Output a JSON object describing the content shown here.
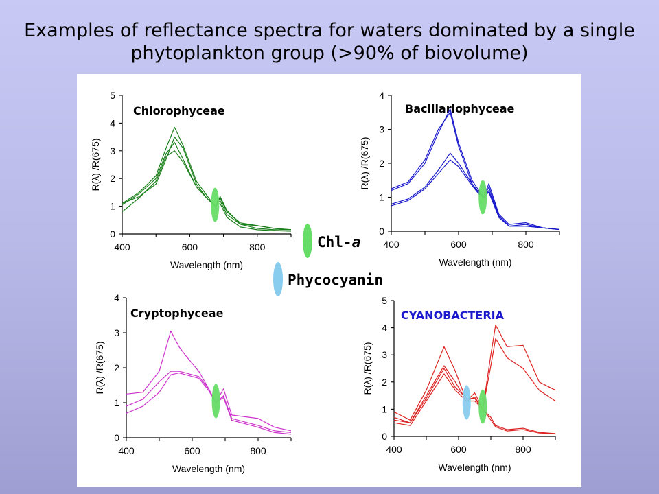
{
  "slide_title": "Examples of reflectance spectra for waters dominated by a single phytoplankton group (>90% of biovolume)",
  "legend": {
    "chl_label": "Chl-",
    "chl_italic": "a",
    "phyco_label": "Phycocyanin",
    "chl_color": "#66dd66",
    "phyco_color": "#88ccee"
  },
  "chart_data": [
    {
      "type": "line",
      "title": "Chlorophyceae",
      "title_color": "#000000",
      "xlabel": "Wavelength (nm)",
      "ylabel": "R(λ) /R(675)",
      "xlim": [
        400,
        900
      ],
      "ylim": [
        0,
        5
      ],
      "xticks": [
        400,
        600,
        800
      ],
      "yticks": [
        0,
        1,
        2,
        3,
        4,
        5
      ],
      "line_color": "#1a7f1a",
      "markers": [
        {
          "kind": "chl-a",
          "x": 675,
          "y": 1.05
        }
      ],
      "series": [
        {
          "x": [
            400,
            450,
            500,
            530,
            555,
            580,
            620,
            650,
            675,
            690,
            710,
            750,
            800,
            850,
            900
          ],
          "y": [
            1.05,
            1.45,
            2.0,
            2.9,
            3.3,
            2.7,
            1.7,
            1.3,
            1.0,
            1.2,
            0.7,
            0.35,
            0.2,
            0.15,
            0.15
          ]
        },
        {
          "x": [
            400,
            450,
            500,
            530,
            555,
            580,
            620,
            650,
            675,
            690,
            710,
            750,
            800,
            850,
            900
          ],
          "y": [
            1.1,
            1.5,
            2.1,
            3.1,
            3.85,
            3.2,
            1.9,
            1.4,
            1.0,
            1.35,
            0.85,
            0.35,
            0.3,
            0.2,
            0.15
          ]
        },
        {
          "x": [
            400,
            450,
            500,
            530,
            555,
            580,
            620,
            650,
            675,
            690,
            710,
            750,
            800,
            850,
            900
          ],
          "y": [
            0.8,
            1.3,
            1.9,
            2.8,
            3.0,
            2.6,
            1.7,
            1.3,
            1.0,
            1.1,
            0.6,
            0.25,
            0.15,
            0.12,
            0.1
          ]
        },
        {
          "x": [
            400,
            450,
            500,
            530,
            555,
            580,
            620,
            650,
            675,
            690,
            710,
            750,
            800,
            850,
            900
          ],
          "y": [
            1.1,
            1.35,
            1.8,
            2.7,
            3.5,
            3.1,
            1.8,
            1.3,
            1.0,
            1.3,
            0.8,
            0.4,
            0.3,
            0.2,
            0.15
          ]
        }
      ]
    },
    {
      "type": "line",
      "title": "Bacillariophyceae",
      "title_color": "#000000",
      "xlabel": "Wavelength (nm)",
      "ylabel": "R(λ) /R(675)",
      "xlim": [
        400,
        900
      ],
      "ylim": [
        0,
        4
      ],
      "xticks": [
        400,
        600,
        800
      ],
      "yticks": [
        0,
        1,
        2,
        3,
        4
      ],
      "line_color": "#1a1acc",
      "markers": [
        {
          "kind": "chl-a",
          "x": 672,
          "y": 1.0
        }
      ],
      "series": [
        {
          "x": [
            400,
            450,
            500,
            540,
            575,
            600,
            640,
            660,
            675,
            690,
            720,
            750,
            800,
            850,
            900
          ],
          "y": [
            1.2,
            1.4,
            2.0,
            2.9,
            3.6,
            2.6,
            1.5,
            1.2,
            1.0,
            1.4,
            0.5,
            0.2,
            0.25,
            0.1,
            0.05
          ]
        },
        {
          "x": [
            400,
            450,
            500,
            540,
            575,
            600,
            640,
            660,
            675,
            690,
            720,
            750,
            800,
            850,
            900
          ],
          "y": [
            1.25,
            1.45,
            2.1,
            3.0,
            3.5,
            2.5,
            1.4,
            1.1,
            1.0,
            1.3,
            0.45,
            0.15,
            0.2,
            0.1,
            0.05
          ]
        },
        {
          "x": [
            400,
            450,
            500,
            540,
            575,
            600,
            640,
            660,
            675,
            690,
            720,
            750,
            800,
            850,
            900
          ],
          "y": [
            0.8,
            0.95,
            1.3,
            1.8,
            2.3,
            2.0,
            1.4,
            1.15,
            1.0,
            1.2,
            0.45,
            0.15,
            0.15,
            0.1,
            0.05
          ]
        },
        {
          "x": [
            400,
            450,
            500,
            540,
            575,
            600,
            640,
            660,
            675,
            690,
            720,
            750,
            800,
            850,
            900
          ],
          "y": [
            0.75,
            0.9,
            1.25,
            1.7,
            2.1,
            1.9,
            1.35,
            1.1,
            1.0,
            1.15,
            0.4,
            0.15,
            0.15,
            0.1,
            0.05
          ]
        }
      ]
    },
    {
      "type": "line",
      "title": "Cryptophyceae",
      "title_color": "#000000",
      "xlabel": "Wavelength (nm)",
      "ylabel": "R(λ) /R(675)",
      "xlim": [
        400,
        900
      ],
      "ylim": [
        0,
        4
      ],
      "xticks": [
        400,
        600,
        800
      ],
      "yticks": [
        0,
        1,
        2,
        3,
        4
      ],
      "line_color": "#cc33cc",
      "markers": [
        {
          "kind": "chl-a",
          "x": 672,
          "y": 1.05
        }
      ],
      "series": [
        {
          "x": [
            400,
            450,
            500,
            535,
            560,
            580,
            620,
            650,
            672,
            695,
            720,
            760,
            800,
            850,
            900
          ],
          "y": [
            1.25,
            1.3,
            1.9,
            3.05,
            2.6,
            2.35,
            1.9,
            1.4,
            1.0,
            1.4,
            0.65,
            0.6,
            0.55,
            0.3,
            0.2
          ]
        },
        {
          "x": [
            400,
            450,
            500,
            535,
            560,
            580,
            620,
            650,
            672,
            695,
            720,
            760,
            800,
            850,
            900
          ],
          "y": [
            0.9,
            1.1,
            1.6,
            1.9,
            1.9,
            1.85,
            1.75,
            1.4,
            1.0,
            1.2,
            0.55,
            0.45,
            0.35,
            0.2,
            0.15
          ]
        },
        {
          "x": [
            400,
            450,
            500,
            535,
            560,
            580,
            620,
            650,
            672,
            695,
            720,
            760,
            800,
            850,
            900
          ],
          "y": [
            0.7,
            0.9,
            1.3,
            1.8,
            1.85,
            1.8,
            1.7,
            1.35,
            1.0,
            1.15,
            0.5,
            0.4,
            0.3,
            0.15,
            0.1
          ]
        }
      ]
    },
    {
      "type": "line",
      "title": "CYANOBACTERIA",
      "title_color": "#1a1acc",
      "xlabel": "Wavelength (nm)",
      "ylabel": "R(λ) /R(675)",
      "xlim": [
        400,
        900
      ],
      "ylim": [
        0,
        5
      ],
      "xticks": [
        400,
        600,
        800
      ],
      "yticks": [
        0,
        1,
        2,
        3,
        4,
        5
      ],
      "line_color": "#dd2222",
      "markers": [
        {
          "kind": "phycocyanin",
          "x": 625,
          "y": 1.25
        },
        {
          "kind": "chl-a",
          "x": 675,
          "y": 1.1
        }
      ],
      "series": [
        {
          "x": [
            400,
            450,
            500,
            555,
            590,
            625,
            650,
            675,
            700,
            715,
            750,
            800,
            850,
            900
          ],
          "y": [
            0.9,
            0.6,
            1.7,
            3.3,
            2.4,
            1.3,
            1.6,
            1.0,
            3.0,
            4.1,
            3.3,
            3.35,
            2.0,
            1.7
          ]
        },
        {
          "x": [
            400,
            450,
            500,
            555,
            590,
            625,
            650,
            675,
            700,
            715,
            750,
            800,
            850,
            900
          ],
          "y": [
            0.7,
            0.5,
            1.5,
            2.6,
            2.0,
            1.3,
            1.45,
            1.0,
            2.6,
            3.6,
            2.9,
            2.5,
            1.7,
            1.3
          ]
        },
        {
          "x": [
            400,
            450,
            500,
            555,
            590,
            625,
            650,
            675,
            700,
            715,
            750,
            800,
            850,
            900
          ],
          "y": [
            0.6,
            0.5,
            1.4,
            2.5,
            1.8,
            1.4,
            1.4,
            1.0,
            0.7,
            0.4,
            0.25,
            0.3,
            0.15,
            0.1
          ]
        },
        {
          "x": [
            400,
            450,
            500,
            555,
            590,
            625,
            650,
            675,
            700,
            715,
            750,
            800,
            850,
            900
          ],
          "y": [
            0.5,
            0.4,
            1.3,
            2.3,
            1.7,
            1.3,
            1.3,
            1.0,
            0.6,
            0.35,
            0.2,
            0.25,
            0.12,
            0.1
          ]
        }
      ]
    }
  ]
}
